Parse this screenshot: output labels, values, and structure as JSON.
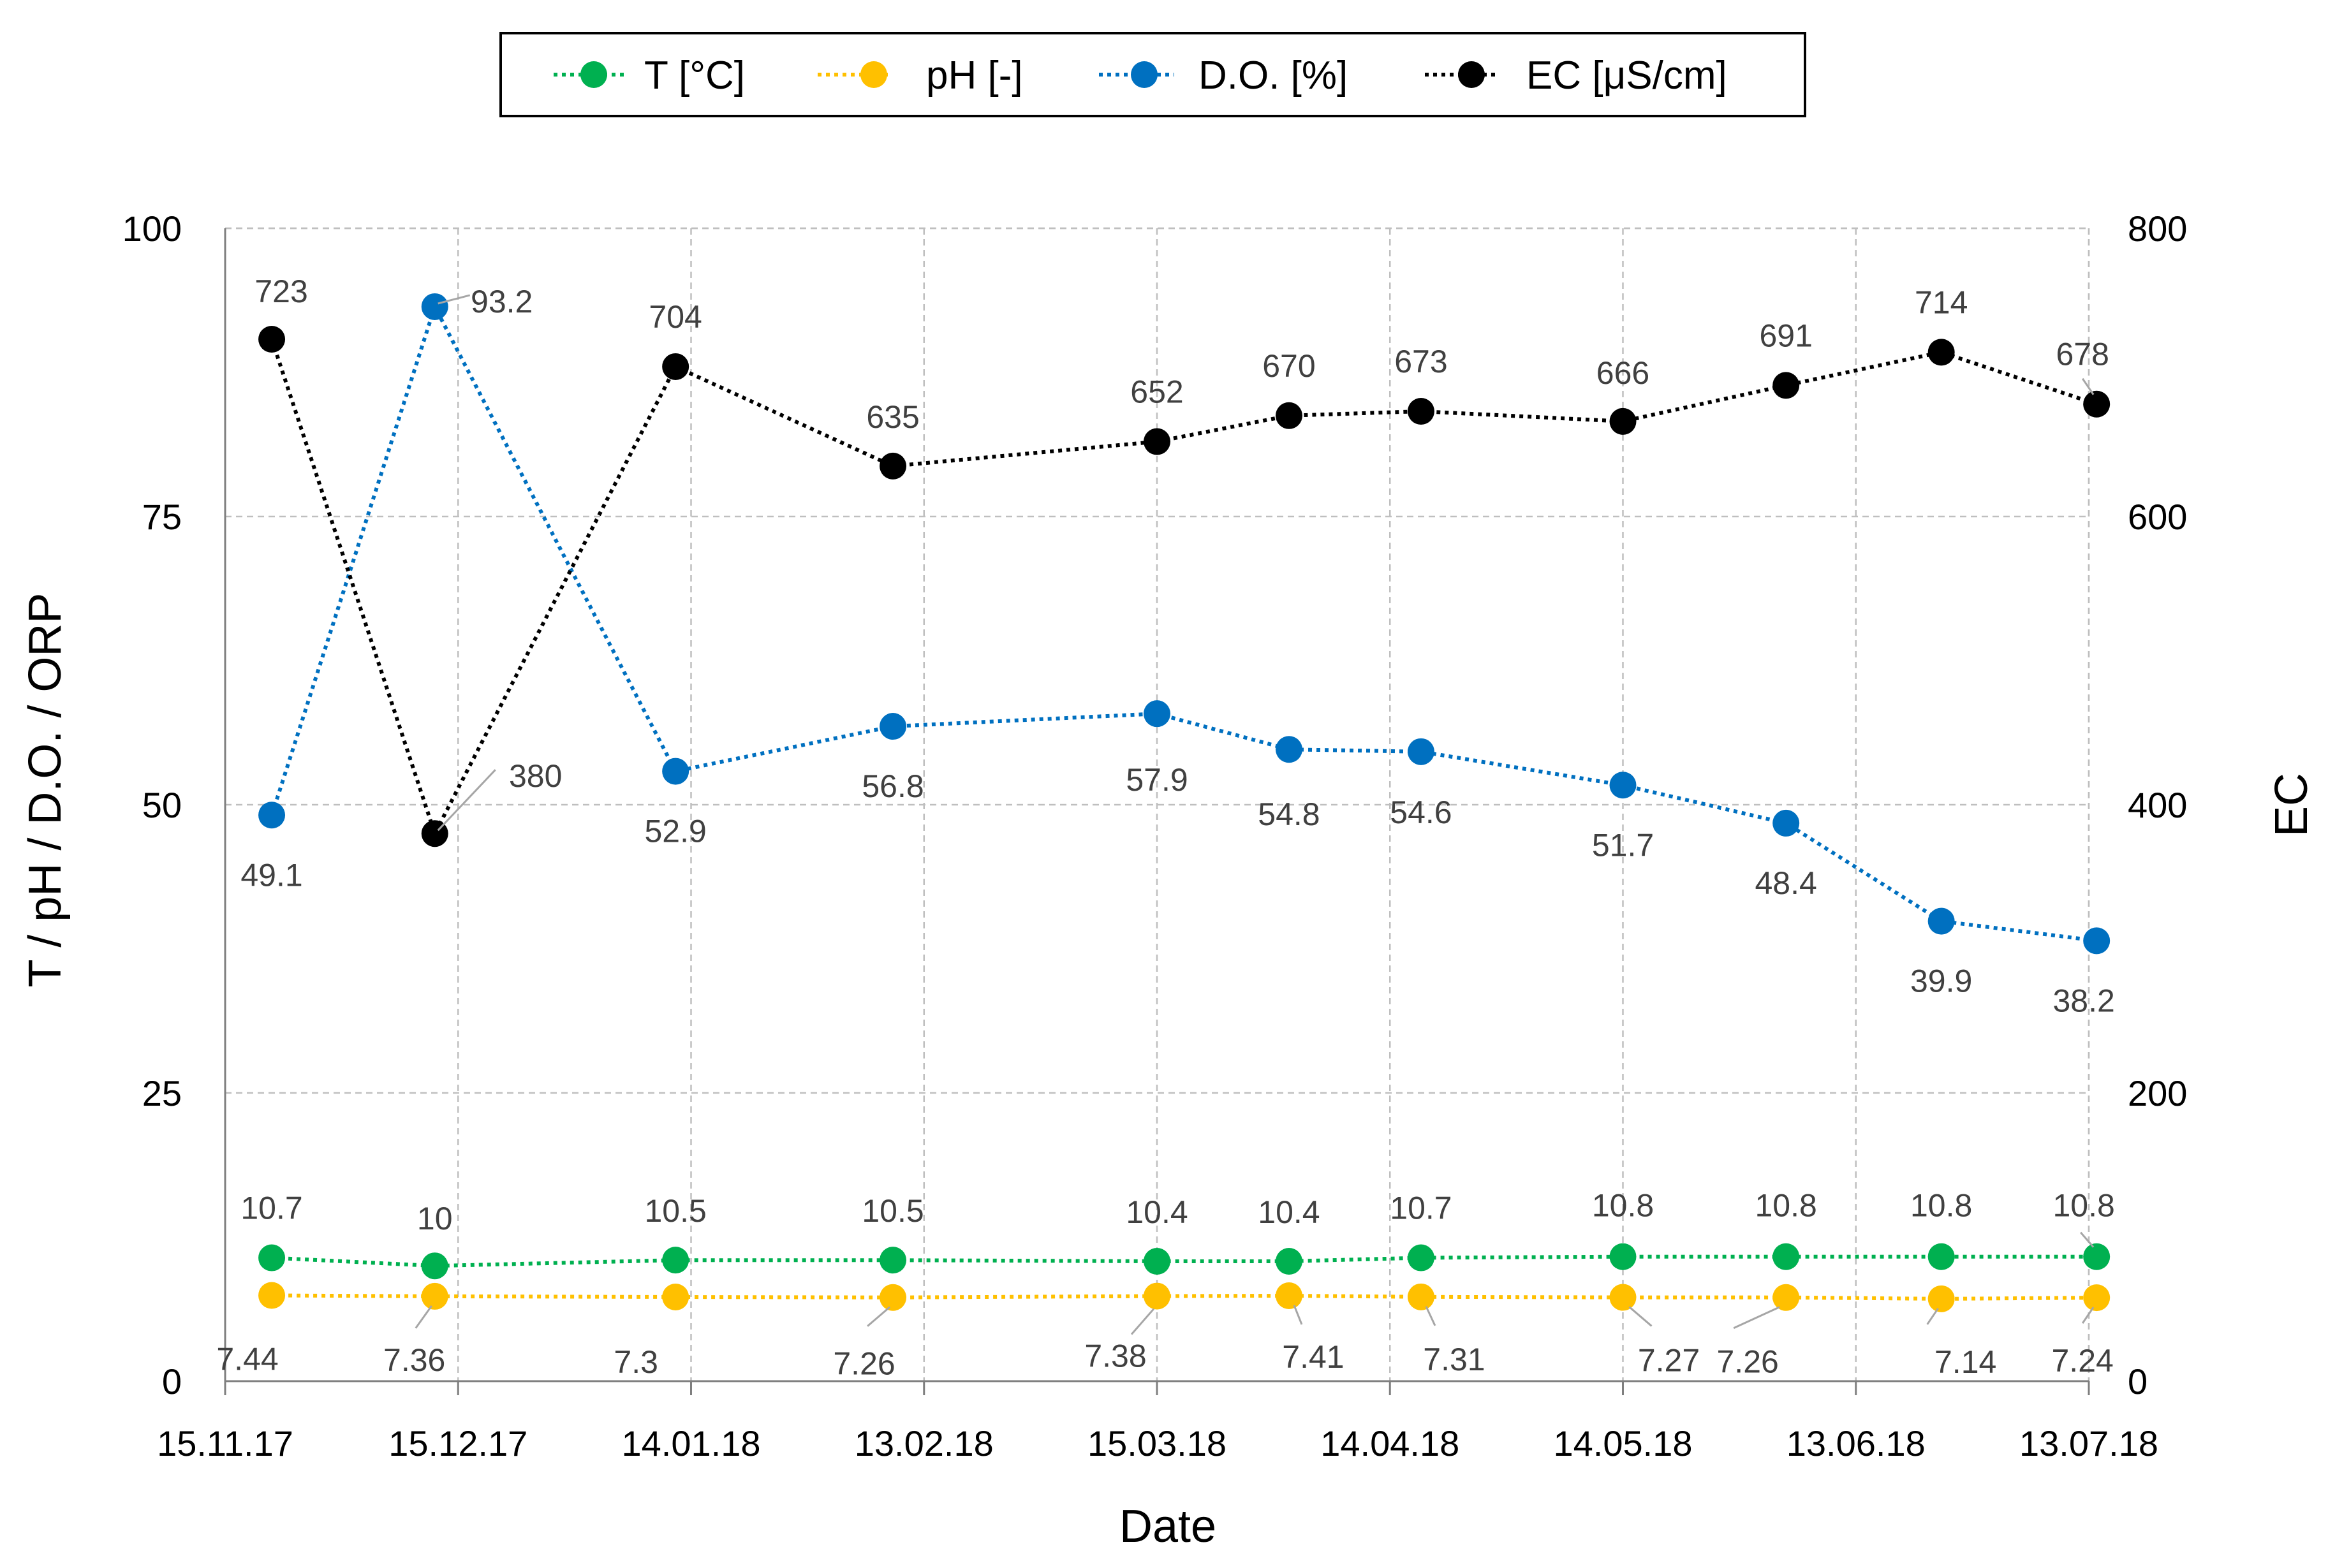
{
  "chart_data": {
    "type": "line",
    "xlabel": "Date",
    "ylabel": "T / pH / D.O. / ORP",
    "y2label": "EC",
    "ylim": [
      0,
      100
    ],
    "y2lim": [
      0,
      800
    ],
    "grid": true,
    "legend_position": "top-center",
    "x_tick_labels": [
      "15.11.17",
      "15.12.17",
      "14.01.18",
      "13.02.18",
      "15.03.18",
      "14.04.18",
      "14.05.18",
      "13.06.18",
      "13.07.18"
    ],
    "y_ticks": [
      0,
      25,
      50,
      75,
      100
    ],
    "y2_ticks": [
      0,
      200,
      400,
      600,
      800
    ],
    "x_days": [
      6,
      27,
      58,
      86,
      120,
      137,
      154,
      180,
      201,
      221,
      241
    ],
    "series": [
      {
        "name": "T  [°C]",
        "axis": "left",
        "color": "#00b050",
        "values": [
          10.7,
          10,
          10.5,
          10.5,
          10.4,
          10.4,
          10.7,
          10.8,
          10.8,
          10.8,
          10.8
        ],
        "labels": [
          "10.7",
          "10",
          "10.5",
          "10.5",
          "10.4",
          "10.4",
          "10.7",
          "10.8",
          "10.8",
          "10.8",
          "10.8"
        ]
      },
      {
        "name": "pH [-]",
        "axis": "left",
        "color": "#ffc000",
        "values": [
          7.44,
          7.36,
          7.3,
          7.26,
          7.38,
          7.41,
          7.31,
          7.27,
          7.26,
          7.14,
          7.24
        ],
        "labels": [
          "7.44",
          "7.36",
          "7.3",
          "7.26",
          "7.38",
          "7.41",
          "7.31",
          "7.27",
          "7.26",
          "7.14",
          "7.24"
        ]
      },
      {
        "name": "D.O. [%]",
        "axis": "left",
        "color": "#0070c0",
        "values": [
          49.1,
          93.2,
          52.9,
          56.8,
          57.9,
          54.8,
          54.6,
          51.7,
          48.4,
          39.9,
          38.2
        ],
        "labels": [
          "49.1",
          "93.2",
          "52.9",
          "56.8",
          "57.9",
          "54.8",
          "54.6",
          "51.7",
          "48.4",
          "39.9",
          "38.2"
        ]
      },
      {
        "name": "EC [μS/cm]",
        "axis": "right",
        "color": "#000000",
        "values": [
          723,
          380,
          704,
          635,
          652,
          670,
          673,
          666,
          691,
          714,
          678
        ],
        "labels": [
          "723",
          "380",
          "704",
          "635",
          "652",
          "670",
          "673",
          "666",
          "691",
          "714",
          "678"
        ]
      }
    ]
  }
}
